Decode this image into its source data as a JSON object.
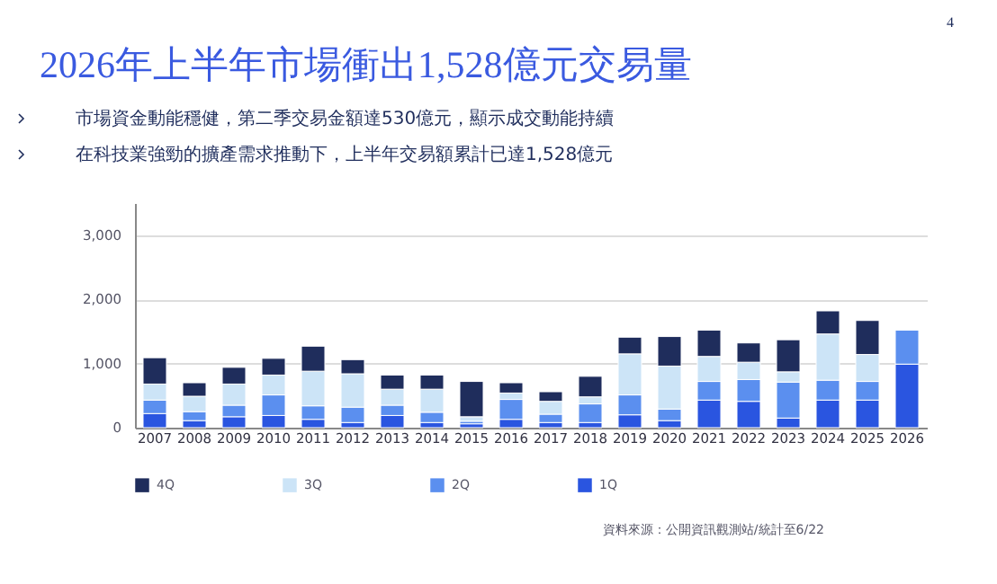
{
  "chart_data": {
    "type": "bar",
    "title": "2026年上半年市場衝出1,528億元交易量",
    "subtitle": "市場資金動能穩健，第二季交易金額達530億元，顯示成交動能持續",
    "annotations": [
      "在科技業強勁的擴產需求推動下，上半年交易額累計已達1,528億元",
      "資料來源：公開資訊觀測站/統計至6/22",
      "4"
    ],
    "categories": [
      "2007",
      "2008",
      "2009",
      "2010",
      "2011",
      "2012",
      "2013",
      "2014",
      "2015",
      "2016",
      "2017",
      "2018",
      "2019",
      "2020",
      "2021",
      "2022",
      "2023",
      "2024",
      "2025",
      "2026"
    ],
    "stacked": true,
    "series": [
      {
        "name": "1Q",
        "color": "#2a55e0",
        "values": [
          220,
          110,
          170,
          190,
          130,
          80,
          190,
          80,
          60,
          130,
          80,
          80,
          200,
          110,
          430,
          410,
          150,
          430,
          430,
          990
        ]
      },
      {
        "name": "2Q",
        "color": "#5b8fef",
        "values": [
          210,
          140,
          180,
          320,
          210,
          240,
          160,
          160,
          40,
          310,
          130,
          290,
          310,
          180,
          290,
          340,
          560,
          310,
          290,
          530
        ]
      },
      {
        "name": "3Q",
        "color": "#cce4f7",
        "values": [
          250,
          240,
          330,
          310,
          540,
          520,
          250,
          360,
          70,
          100,
          200,
          110,
          640,
          670,
          390,
          270,
          160,
          720,
          420,
          null
        ]
      },
      {
        "name": "4Q",
        "color": "#1f2d5c",
        "values": [
          410,
          210,
          260,
          260,
          390,
          220,
          220,
          220,
          550,
          160,
          150,
          320,
          260,
          460,
          410,
          300,
          500,
          360,
          530,
          null
        ]
      }
    ],
    "ylim": [
      0,
      3500
    ],
    "yticks": [
      0,
      {
        "value": 1000,
        "label": "1,000"
      },
      {
        "value": 2000,
        "label": "2,000"
      },
      {
        "value": 3000,
        "label": "3,000"
      }
    ],
    "grid": "y",
    "legend": "bottom"
  }
}
